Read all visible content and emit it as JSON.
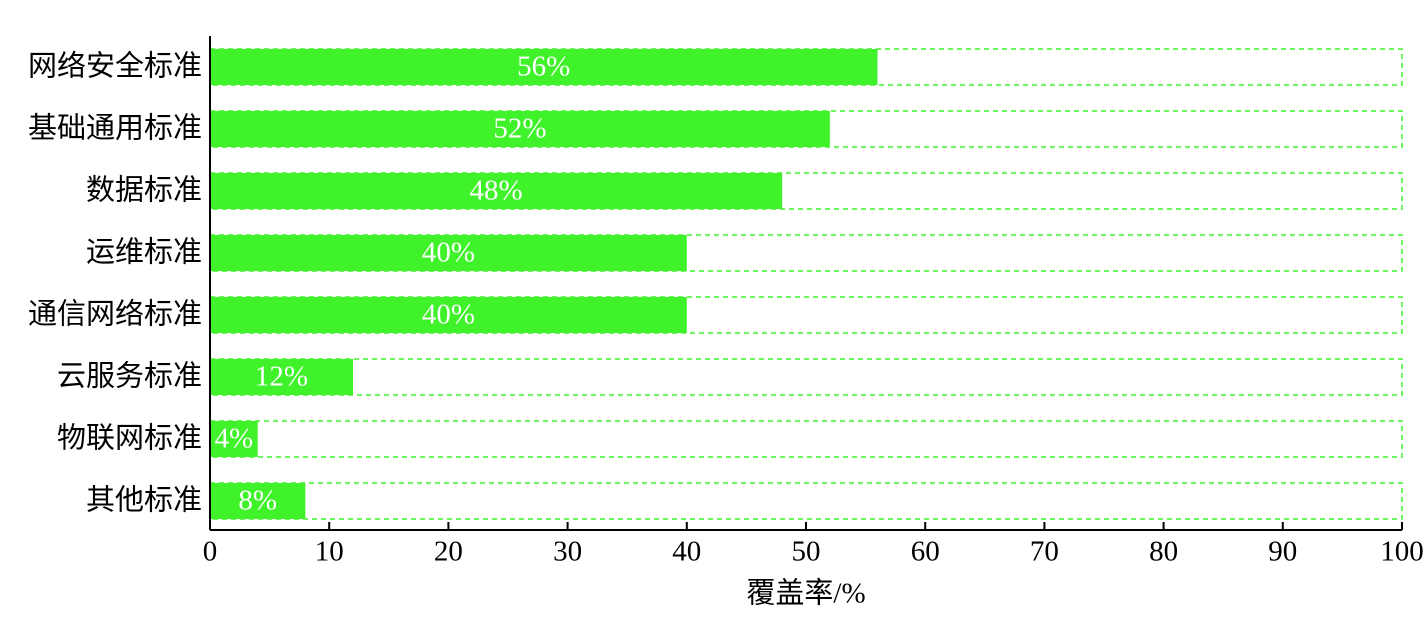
{
  "chart_data": {
    "type": "barh",
    "xlabel": "覆盖率/%",
    "categories": [
      "网络安全标准",
      "基础通用标准",
      "数据标准",
      "运维标准",
      "通信网络标准",
      "云服务标准",
      "物联网标准",
      "其他标准"
    ],
    "values": [
      56,
      52,
      48,
      40,
      40,
      12,
      4,
      8
    ],
    "value_labels": [
      "56%",
      "52%",
      "48%",
      "40%",
      "40%",
      "12%",
      "4%",
      "8%"
    ],
    "color": "#3ff22a",
    "xlim": [
      0,
      100
    ],
    "xticks": [
      0,
      10,
      20,
      30,
      40,
      50,
      60,
      70,
      80,
      90,
      100
    ]
  }
}
